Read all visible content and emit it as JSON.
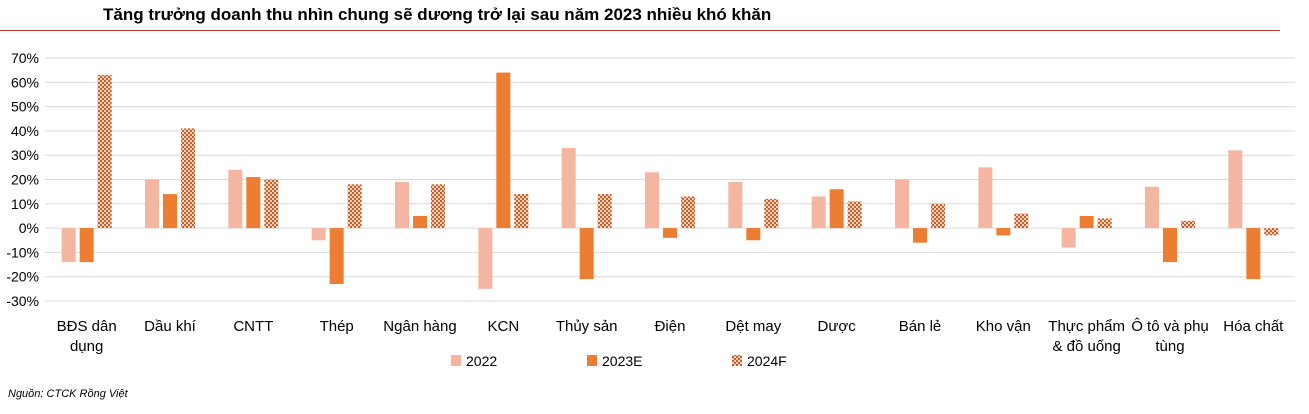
{
  "title": "Tăng trưởng doanh thu nhìn chung sẽ dương trở lại sau năm 2023 nhiều khó khăn",
  "source": "Nguồn: CTCK Rồng Việt",
  "colors": {
    "2022": "#f4b6a0",
    "2023E": "#ed7d31",
    "2024F": "#c8602a",
    "title_rule": "#c0392b",
    "grid": "#d9d9d9"
  },
  "chart_data": {
    "type": "bar",
    "title": "",
    "xlabel": "",
    "ylabel": "",
    "ylim": [
      -30,
      70
    ],
    "yticks": [
      "-30%",
      "-20%",
      "-10%",
      "0%",
      "10%",
      "20%",
      "30%",
      "40%",
      "50%",
      "60%",
      "70%"
    ],
    "ytick_values": [
      -30,
      -20,
      -10,
      0,
      10,
      20,
      30,
      40,
      50,
      60,
      70
    ],
    "grid": true,
    "legend_position": "bottom",
    "categories": [
      [
        "BĐS dân",
        "dụng"
      ],
      [
        "Dầu khí"
      ],
      [
        "CNTT"
      ],
      [
        "Thép"
      ],
      [
        "Ngân hàng"
      ],
      [
        "KCN"
      ],
      [
        "Thủy sản"
      ],
      [
        "Điện"
      ],
      [
        "Dệt may"
      ],
      [
        "Dược"
      ],
      [
        "Bán lẻ"
      ],
      [
        "Kho vận"
      ],
      [
        "Thực phẩm",
        "& đồ uống"
      ],
      [
        "Ô tô và phụ",
        "tùng"
      ],
      [
        "Hóa chất"
      ]
    ],
    "series": [
      {
        "name": "2022",
        "values": [
          -14,
          20,
          24,
          -5,
          19,
          -25,
          33,
          23,
          19,
          13,
          20,
          25,
          -8,
          17,
          32
        ]
      },
      {
        "name": "2023E",
        "values": [
          -14,
          14,
          21,
          -23,
          5,
          64,
          -21,
          -4,
          -5,
          16,
          -6,
          -3,
          5,
          -14,
          -21
        ]
      },
      {
        "name": "2024F",
        "values": [
          63,
          41,
          20,
          18,
          18,
          14,
          14,
          13,
          12,
          11,
          10,
          6,
          4,
          3,
          -3
        ]
      }
    ]
  }
}
